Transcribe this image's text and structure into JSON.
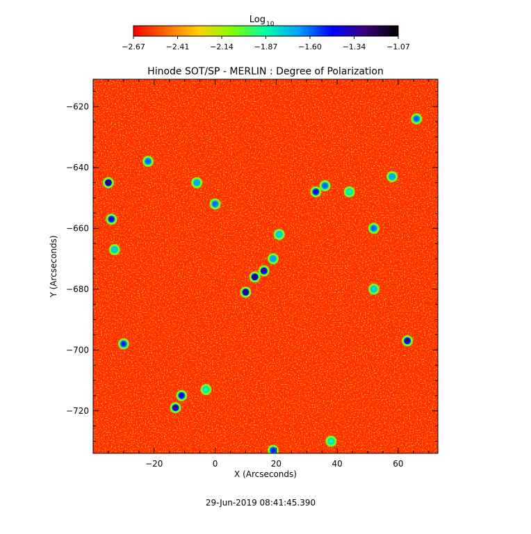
{
  "colorbar": {
    "label_main": "Log",
    "label_sub": "10",
    "ticks": [
      "-2.67",
      "-2.41",
      "-2.14",
      "-1.87",
      "-1.60",
      "-1.34",
      "-1.07"
    ],
    "range": [
      -2.67,
      -1.07
    ],
    "colors": [
      "#ff0000",
      "#ff6a00",
      "#ffd200",
      "#7cff00",
      "#00ffb0",
      "#00a0ff",
      "#0000ff",
      "#3a0078",
      "#000000"
    ]
  },
  "chart_data": {
    "type": "heatmap",
    "title": "Hinode SOT/SP - MERLIN : Degree of Polarization",
    "xlabel": "X (Arcseconds)",
    "ylabel": "Y (Arcseconds)",
    "xlim": [
      -40,
      73
    ],
    "ylim": [
      -734,
      -611
    ],
    "xticks": [
      -20,
      0,
      20,
      40,
      60
    ],
    "yticks": [
      -620,
      -640,
      -660,
      -680,
      -700,
      -720
    ],
    "value_range_log10": [
      -2.67,
      -1.07
    ],
    "background_level": -2.6,
    "features": [
      {
        "x": -35,
        "y": -645,
        "value": -1.2
      },
      {
        "x": -34,
        "y": -657,
        "value": -1.4
      },
      {
        "x": -33,
        "y": -667,
        "value": -1.8
      },
      {
        "x": -30,
        "y": -698,
        "value": -1.5
      },
      {
        "x": -22,
        "y": -638,
        "value": -1.6
      },
      {
        "x": -13,
        "y": -719,
        "value": -1.3
      },
      {
        "x": -11,
        "y": -715,
        "value": -1.4
      },
      {
        "x": -6,
        "y": -645,
        "value": -1.7
      },
      {
        "x": 0,
        "y": -652,
        "value": -1.6
      },
      {
        "x": 10,
        "y": -681,
        "value": -1.2
      },
      {
        "x": 13,
        "y": -676,
        "value": -1.2
      },
      {
        "x": 16,
        "y": -674,
        "value": -1.3
      },
      {
        "x": 19,
        "y": -670,
        "value": -1.7
      },
      {
        "x": 21,
        "y": -662,
        "value": -1.8
      },
      {
        "x": 33,
        "y": -648,
        "value": -1.4
      },
      {
        "x": 36,
        "y": -646,
        "value": -1.6
      },
      {
        "x": 44,
        "y": -648,
        "value": -1.9
      },
      {
        "x": 52,
        "y": -660,
        "value": -1.6
      },
      {
        "x": 58,
        "y": -643,
        "value": -1.7
      },
      {
        "x": 63,
        "y": -697,
        "value": -1.3
      },
      {
        "x": 66,
        "y": -624,
        "value": -1.6
      },
      {
        "x": 38,
        "y": -730,
        "value": -1.9
      },
      {
        "x": 19,
        "y": -733,
        "value": -1.5
      },
      {
        "x": -3,
        "y": -713,
        "value": -1.9
      },
      {
        "x": 52,
        "y": -680,
        "value": -1.8
      }
    ],
    "grid": false
  },
  "footer": {
    "timestamp": "29-Jun-2019 08:41:45.390"
  }
}
